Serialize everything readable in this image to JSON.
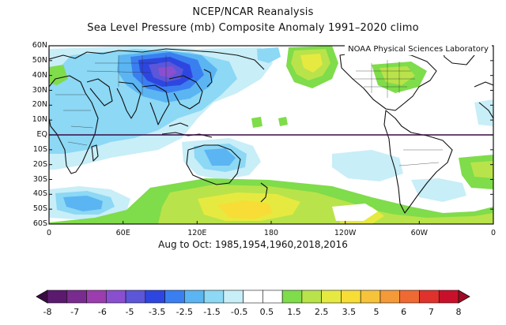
{
  "title": "NCEP/NCAR Reanalysis",
  "subtitle": "Sea Level Pressure (mb) Composite Anomaly 1991–2020 climo",
  "credit": "NOAA Physical Sciences Laboratory",
  "composite_note": "Aug to Oct: 1985,1954,1960,2018,2016",
  "variable": "Sea Level Pressure anomaly",
  "units": "mb",
  "lat_labels": [
    "60N",
    "50N",
    "40N",
    "30N",
    "20N",
    "10N",
    "EQ",
    "10S",
    "20S",
    "30S",
    "40S",
    "50S",
    "60S"
  ],
  "lon_labels": [
    "0",
    "60E",
    "120E",
    "180",
    "120W",
    "60W",
    "0"
  ],
  "colorbar": {
    "labels": [
      "-8",
      "-7",
      "-6",
      "-5",
      "-3.5",
      "-2.5",
      "-1.5",
      "-0.5",
      "0.5",
      "1.5",
      "2.5",
      "3.5",
      "5",
      "6",
      "7",
      "8"
    ],
    "colors": [
      "#3b0a45",
      "#5b1a6e",
      "#7a2b8f",
      "#9b3dae",
      "#8a4fcf",
      "#5c56d8",
      "#2e46e0",
      "#3a7ff0",
      "#5bb5f2",
      "#8cd8f5",
      "#c8eef8",
      "#ffffff",
      "#ffffff",
      "#7fdc4a",
      "#b9e34a",
      "#e6ea40",
      "#f7dd36",
      "#f7c33a",
      "#f59a38",
      "#ef6a33",
      "#e0322c",
      "#c9102a",
      "#9f0b24"
    ],
    "extend": "both"
  },
  "anomaly_regions": [
    {
      "name": "siberian-high-anomaly",
      "sign": "negative",
      "peak": -3.5
    },
    {
      "name": "southern-ocean-ridge",
      "sign": "positive",
      "peak": 3.5
    },
    {
      "name": "south-indian-low",
      "sign": "negative",
      "peak": -2.5
    },
    {
      "name": "north-pacific-ridge",
      "sign": "positive",
      "peak": 2.5
    }
  ]
}
